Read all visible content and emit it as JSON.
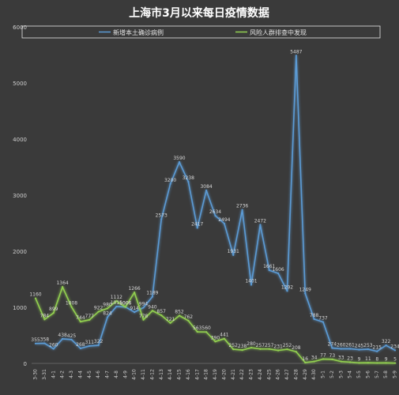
{
  "chart_data": {
    "type": "line",
    "title": "上海市3月以来每日疫情数据",
    "xlabel": "",
    "ylabel": "",
    "ylim": [
      0,
      6000
    ],
    "yticks": [
      "0",
      "1000",
      "2000",
      "3000",
      "4000",
      "5000",
      "6000"
    ],
    "grid": false,
    "legend": "top",
    "categories": [
      "3-30",
      "3-31",
      "4-1",
      "4-2",
      "4-3",
      "4-4",
      "4-5",
      "4-6",
      "4-7",
      "4-8",
      "4-9",
      "4-10",
      "4-11",
      "4-12",
      "4-13",
      "4-14",
      "4-15",
      "4-16",
      "4-17",
      "4-18",
      "4-19",
      "4-20",
      "4-21",
      "4-22",
      "4-23",
      "4-24",
      "4-25",
      "4-26",
      "4-27",
      "4-28",
      "4-29",
      "4-30",
      "5-1",
      "5-2",
      "5-3",
      "5-4",
      "5-5",
      "5-6",
      "5-7",
      "5-8",
      "5-9"
    ],
    "series": [
      {
        "name": "新增本土确诊病例",
        "color": "#5b9bd5",
        "values": [
          355,
          358,
          260,
          438,
          425,
          268,
          311,
          322,
          824,
          1015,
          1006,
          914,
          994,
          1189,
          2573,
          3200,
          3590,
          3238,
          2417,
          3084,
          2634,
          2494,
          1931,
          2736,
          1401,
          2472,
          1661,
          1606,
          1292,
          5487,
          1249,
          788,
          737,
          274,
          260,
          261,
          245,
          253,
          215,
          322,
          234
        ],
        "labels": [
          "355",
          "358",
          "260",
          "438",
          "425",
          "268",
          "311",
          "322",
          "824",
          "1015",
          "1006",
          "914",
          "994",
          "1189",
          "2573",
          "3200",
          "3590",
          "3238",
          "2417",
          "3084",
          "2634",
          "2494",
          "1931",
          "2736",
          "1401",
          "2472",
          "1661",
          "1606",
          "1292",
          "5487",
          "1249",
          "788",
          "737",
          "274",
          "260",
          "261",
          "245",
          "253",
          "215",
          "322",
          "234"
        ]
      },
      {
        "name": "风险人群排查中发现",
        "color": "#92d050",
        "values": [
          1160,
          784,
          899,
          1364,
          1008,
          744,
          777,
          922,
          980,
          1112,
          1006,
          1266,
          778,
          940,
          857,
          721,
          852,
          762,
          563,
          560,
          390,
          441,
          252,
          238,
          280,
          257,
          257,
          231,
          252,
          208,
          16,
          34,
          77,
          73,
          33,
          23,
          9,
          11,
          8,
          9,
          5
        ],
        "labels": [
          "1160",
          "784",
          "899",
          "1364",
          "1008",
          "744",
          "777",
          "922",
          "980",
          "1112",
          "1006",
          "1266",
          "778",
          "940",
          "857",
          "721",
          "852",
          "762",
          "563",
          "560",
          "390",
          "441",
          "252",
          "238",
          "280",
          "257",
          "257",
          "231",
          "252",
          "208",
          "16",
          "34",
          "77",
          "73",
          "33",
          "23",
          "9",
          "11",
          "8",
          "9",
          "5"
        ]
      }
    ]
  }
}
